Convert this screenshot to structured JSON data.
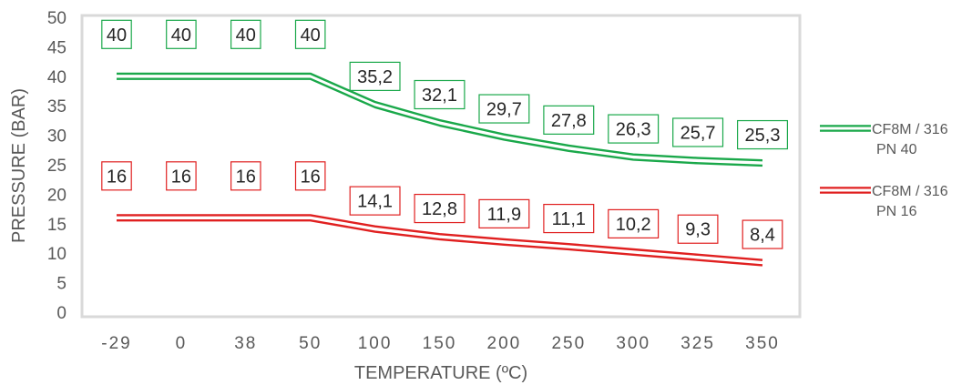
{
  "chart_data": {
    "type": "line",
    "categories": [
      "-29",
      "0",
      "38",
      "50",
      "100",
      "150",
      "200",
      "250",
      "300",
      "325",
      "350"
    ],
    "series": [
      {
        "name_lines": [
          "CF8M / 316",
          "PN 40"
        ],
        "color": "#1aa84a",
        "values": [
          40,
          40,
          40,
          40,
          35.2,
          32.1,
          29.7,
          27.8,
          26.3,
          25.7,
          25.3
        ],
        "labels": [
          "40",
          "40",
          "40",
          "40",
          "35,2",
          "32,1",
          "29,7",
          "27,8",
          "26,3",
          "25,7",
          "25,3"
        ]
      },
      {
        "name_lines": [
          "CF8M / 316",
          "PN 16"
        ],
        "color": "#e02020",
        "values": [
          16,
          16,
          16,
          16,
          14.1,
          12.8,
          11.9,
          11.1,
          10.2,
          9.3,
          8.4
        ],
        "labels": [
          "16",
          "16",
          "16",
          "16",
          "14,1",
          "12,8",
          "11,9",
          "11,1",
          "10,2",
          "9,3",
          "8,4"
        ]
      }
    ],
    "xlabel": "TEMPERATURE (ºC)",
    "ylabel": "PRESSURE (BAR)",
    "ylim": [
      0,
      50
    ],
    "yticks": [
      "0",
      "5",
      "10",
      "15",
      "20",
      "25",
      "30",
      "35",
      "40",
      "45",
      "50"
    ],
    "grid": false,
    "legend_position": "right"
  }
}
